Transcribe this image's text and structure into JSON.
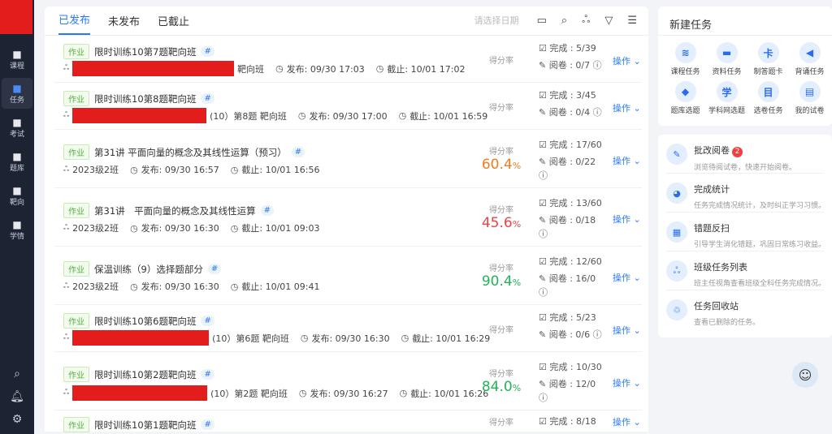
{
  "sidebar": {
    "items": [
      {
        "label": "课程",
        "icon": "book-icon"
      },
      {
        "label": "任务",
        "icon": "list-icon",
        "active": true
      },
      {
        "label": "考试",
        "icon": "exam-icon"
      },
      {
        "label": "题库",
        "icon": "cube-icon"
      },
      {
        "label": "靶向",
        "icon": "target-icon"
      },
      {
        "label": "学情",
        "icon": "pulse-icon"
      }
    ]
  },
  "tabs": [
    "已发布",
    "未发布",
    "已截止"
  ],
  "toolbar": {
    "date_placeholder": "请选择日期"
  },
  "common": {
    "tag": "作业",
    "hash": "#",
    "score_label": "得分率",
    "op": "操作",
    "percent": "%"
  },
  "tasks": [
    {
      "title": "限时训练10第7题靶向班",
      "cls": "靶向班",
      "pub": "发布: 09/30 17:03",
      "due": "截止: 10/01 17:02",
      "done": "完成 : 5/39",
      "read": "阅卷 : 0/7",
      "red": 199
    },
    {
      "title": "限时训练10第8题靶向班",
      "cls": "(10）第8题 靶向班",
      "pub": "发布: 09/30 17:00",
      "due": "截止: 10/01 16:59",
      "done": "完成 : 3/45",
      "read": "阅卷 : 0/4",
      "red": 165
    },
    {
      "title": "第31讲 平面向量的概念及其线性运算（预习）",
      "cls": "2023级2班",
      "pub": "发布: 09/30 16:57",
      "due": "截止: 10/01 16:56",
      "done": "完成 : 17/60",
      "read": "阅卷 : 0/22",
      "score": "60.4",
      "color": "#f07d22"
    },
    {
      "title": "第31讲　平面向量的概念及其线性运算",
      "cls": "2023级2班",
      "pub": "发布: 09/30 16:30",
      "due": "截止: 10/01 09:03",
      "done": "完成 : 13/60",
      "read": "阅卷 : 0/18",
      "score": "45.6",
      "color": "#ef4444"
    },
    {
      "title": "保温训练（9）选择题部分",
      "cls": "2023级2班",
      "pub": "发布: 09/30 16:30",
      "due": "截止: 10/01 09:41",
      "done": "完成 : 12/60",
      "read": "阅卷 : 16/0",
      "score": "90.4",
      "color": "#22b35a"
    },
    {
      "title": "限时训练10第6题靶向班",
      "cls": "(10）第6题 靶向班",
      "pub": "发布: 09/30 16:30",
      "due": "截止: 10/01 16:29",
      "done": "完成 : 5/23",
      "read": "阅卷 : 0/6",
      "red": 168
    },
    {
      "title": "限时训练10第2题靶向班",
      "cls": "(10）第2题 靶向班",
      "pub": "发布: 09/30 16:27",
      "due": "截止: 10/01 16:26",
      "done": "完成 : 10/30",
      "read": "阅卷 : 12/0",
      "score": "84.0",
      "color": "#22b35a",
      "red": 166
    },
    {
      "title": "限时训练10第1题靶向班",
      "cls": "",
      "pub": "",
      "due": "",
      "done": "完成 : 8/18",
      "read": ""
    }
  ],
  "new_task": {
    "title": "新建任务",
    "items": [
      {
        "label": "课程任务",
        "icon": "layers-icon",
        "g": "≋"
      },
      {
        "label": "资料任务",
        "icon": "folder-icon",
        "g": "▬"
      },
      {
        "label": "制答题卡",
        "icon": "card-icon",
        "g": "卡"
      },
      {
        "label": "背诵任务",
        "icon": "speaker-icon",
        "g": "◀"
      },
      {
        "label": "题库选题",
        "icon": "cube-icon",
        "g": "◆"
      },
      {
        "label": "学科网选题",
        "icon": "xue-icon",
        "g": "学"
      },
      {
        "label": "选卷任务",
        "icon": "paper-icon",
        "g": "目"
      },
      {
        "label": "我的试卷",
        "icon": "doc-icon",
        "g": "▤"
      }
    ]
  },
  "tools": [
    {
      "title": "批改阅卷",
      "desc": "浏览待阅试卷，快速开始阅卷。",
      "badge": "2",
      "icon": "pen-icon",
      "g": "✎"
    },
    {
      "title": "完成统计",
      "desc": "任务完成情况统计，及时纠正学习习惯。",
      "icon": "pie-icon",
      "g": "◕"
    },
    {
      "title": "错题反扫",
      "desc": "引导学生消化错题，巩固日常练习收益。",
      "icon": "file-icon",
      "g": "▦"
    },
    {
      "title": "班级任务列表",
      "desc": "班主任视角查看班级全科任务完成情况。",
      "icon": "users-icon",
      "g": "ஃ"
    },
    {
      "title": "任务回收站",
      "desc": "查看已删除的任务。",
      "icon": "trash-icon",
      "g": "♲"
    }
  ]
}
